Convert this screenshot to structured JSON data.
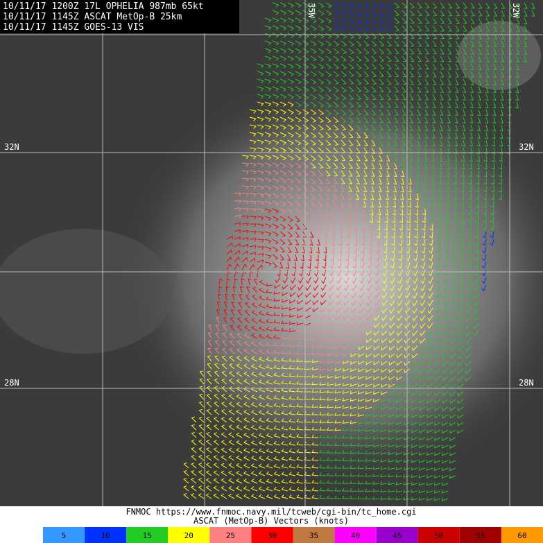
{
  "header": {
    "lines": [
      "10/11/17 1200Z  17L OPHELIA 987mb 65kt",
      "10/11/17 1145Z  ASCAT MetOp-B 25km",
      "10/11/17 1145Z  GOES-13 VIS"
    ]
  },
  "grid_labels": {
    "lat": [
      "32N",
      "28N"
    ],
    "lon": [
      "35W",
      "32W"
    ]
  },
  "footer": {
    "url": "FNMOC https://www.fnmoc.navy.mil/tcweb/cgi-bin/tc_home.cgi",
    "legend_title": "ASCAT (MetOp-B) Vectors (knots)"
  },
  "legend": [
    {
      "label": 5,
      "color": "#3399ff"
    },
    {
      "label": 10,
      "color": "#0033ff"
    },
    {
      "label": 15,
      "color": "#22cc22"
    },
    {
      "label": 20,
      "color": "#ffff00"
    },
    {
      "label": 25,
      "color": "#ff8080"
    },
    {
      "label": 30,
      "color": "#ff0000"
    },
    {
      "label": 35,
      "color": "#c07840"
    },
    {
      "label": 40,
      "color": "#ff00ff"
    },
    {
      "label": 45,
      "color": "#9900cc"
    },
    {
      "label": 50,
      "color": "#cc0000"
    },
    {
      "label": 55,
      "color": "#a00000"
    },
    {
      "label": 60,
      "color": "#ff9900"
    }
  ]
}
